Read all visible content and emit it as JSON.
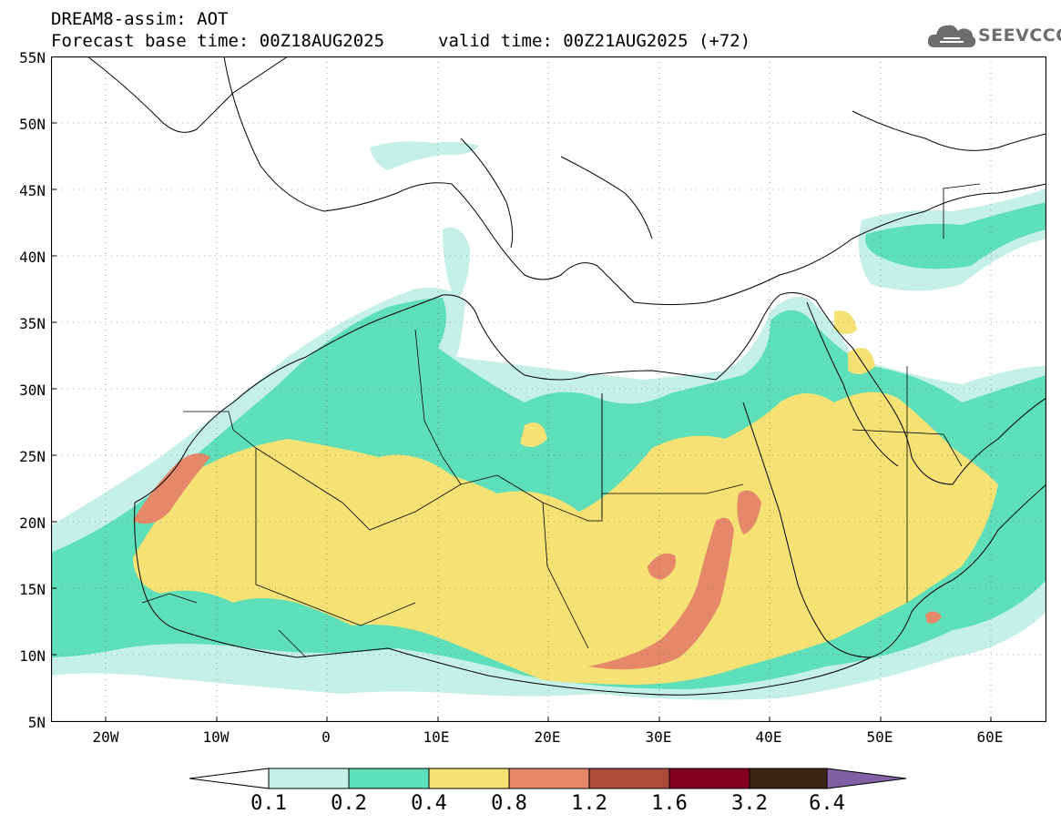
{
  "header": {
    "title_line1": "DREAM8-assim: AOT",
    "title_line2a": "Forecast base time: 00Z18AUG2025",
    "title_line2b": "valid time: 00Z21AUG2025 (+72)",
    "logo_text": "SEEVCCC",
    "logo_icon": "cloud-icon"
  },
  "axes": {
    "lat_labels": [
      "55N",
      "50N",
      "45N",
      "40N",
      "35N",
      "30N",
      "25N",
      "20N",
      "15N",
      "10N",
      "5N"
    ],
    "lon_labels": [
      "20W",
      "10W",
      "0",
      "10E",
      "20E",
      "30E",
      "40E",
      "50E",
      "60E"
    ]
  },
  "colorbar": {
    "labels": [
      "0.1",
      "0.2",
      "0.4",
      "0.8",
      "1.2",
      "1.6",
      "3.2",
      "6.4"
    ],
    "colors": [
      "#ffffff",
      "#c4f0e8",
      "#5ddfb9",
      "#f5e174",
      "#e5886a",
      "#ad4b3a",
      "#820024",
      "#3c2415",
      "#8061a6"
    ]
  },
  "map_colors": {
    "land_outline": "#000000",
    "c1": "#c4f0e8",
    "c2": "#5ddfb9",
    "c3": "#f5e174",
    "c4": "#e5886a"
  }
}
